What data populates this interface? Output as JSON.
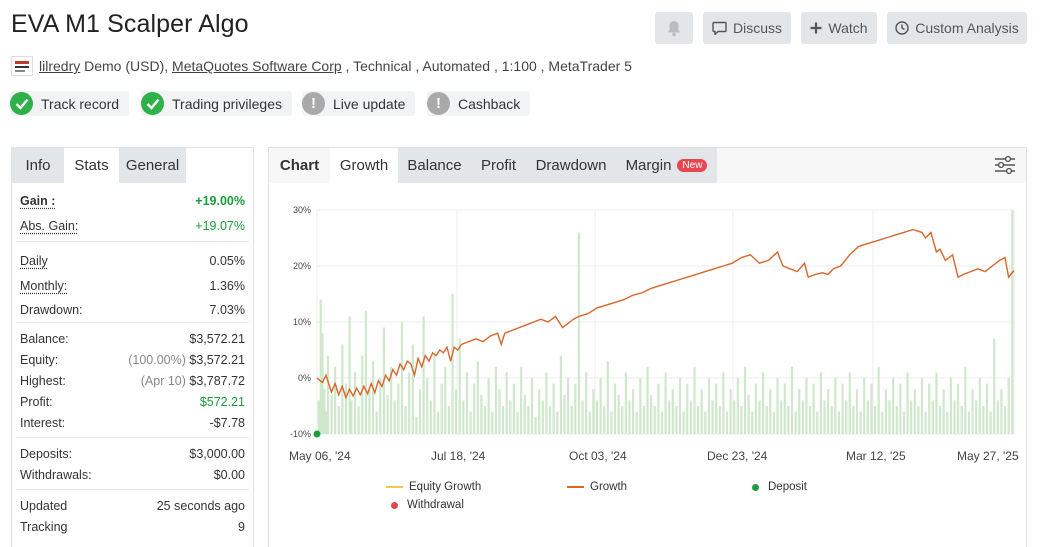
{
  "header": {
    "title": "EVA M1 Scalper Algo",
    "buttons": {
      "discuss": "Discuss",
      "watch": "Watch",
      "custom_analysis": "Custom Analysis"
    }
  },
  "meta": {
    "username": "lilredry",
    "account": " Demo (USD), ",
    "broker": "MetaQuotes Software Corp",
    "details": " , Technical , Automated , 1:100 , MetaTrader 5"
  },
  "badges": [
    {
      "label": "Track record",
      "status": "ok"
    },
    {
      "label": "Trading privileges",
      "status": "ok"
    },
    {
      "label": "Live update",
      "status": "warning"
    },
    {
      "label": "Cashback",
      "status": "warning"
    }
  ],
  "left_tabs": [
    "Info",
    "Stats",
    "General"
  ],
  "stats": {
    "gain": {
      "label": "Gain :",
      "value": "+19.00%"
    },
    "abs_gain": {
      "label": "Abs. Gain:",
      "value": "+19.07%"
    },
    "daily": {
      "label": "Daily",
      "value": "0.05%"
    },
    "monthly": {
      "label": "Monthly:",
      "value": "1.36%"
    },
    "drawdown": {
      "label": "Drawdown:",
      "value": "7.03%"
    },
    "balance": {
      "label": "Balance:",
      "value": "$3,572.21"
    },
    "equity": {
      "label": "Equity:",
      "prefix": "(100.00%)",
      "value": "$3,572.21"
    },
    "highest": {
      "label": "Highest:",
      "prefix": "(Apr 10)",
      "value": "$3,787.72"
    },
    "profit": {
      "label": "Profit:",
      "value": "$572.21"
    },
    "interest": {
      "label": "Interest:",
      "value": "-$7.78"
    },
    "deposits": {
      "label": "Deposits:",
      "value": "$3,000.00"
    },
    "withdrawals": {
      "label": "Withdrawals:",
      "value": "$0.00"
    },
    "updated": {
      "label": "Updated",
      "value": "25 seconds ago"
    },
    "tracking": {
      "label": "Tracking",
      "value": "9"
    }
  },
  "right_tabs": {
    "chart": "Chart",
    "growth": "Growth",
    "balance": "Balance",
    "profit": "Profit",
    "drawdown": "Drawdown",
    "margin": "Margin",
    "new": "New"
  },
  "colors": {
    "growth_line": "#d9662b",
    "equity_line": "#f2c94c",
    "bars": "#cfe8cc",
    "deposit": "#1e9e3a",
    "withdrawal": "#e04848",
    "positive": "#1a9c3a",
    "badge_ok": "#2eb04a",
    "badge_warn": "#a9a9a9"
  },
  "chart_data": {
    "type": "line",
    "x_tick_labels": [
      "May 06, '24",
      "Jul 18, '24",
      "Oct 03, '24",
      "Dec 23, '24",
      "Mar 12, '25",
      "May 27, '25"
    ],
    "y_tick_labels": [
      "30%",
      "20%",
      "10%",
      "0%",
      "-10%"
    ],
    "ylim": [
      -10,
      30
    ],
    "x_range_days": [
      0,
      386
    ],
    "series": [
      {
        "name": "Growth",
        "type": "line",
        "x_days": [
          0,
          3,
          5,
          8,
          10,
          12,
          14,
          16,
          18,
          20,
          22,
          24,
          26,
          28,
          30,
          32,
          34,
          36,
          38,
          40,
          42,
          44,
          46,
          48,
          50,
          52,
          54,
          56,
          58,
          60,
          62,
          64,
          66,
          68,
          70,
          72,
          74,
          76,
          78,
          80,
          84,
          88,
          92,
          96,
          100,
          102,
          104,
          108,
          112,
          116,
          120,
          124,
          128,
          132,
          136,
          140,
          142,
          145,
          150,
          155,
          160,
          165,
          170,
          175,
          180,
          185,
          190,
          195,
          200,
          205,
          210,
          215,
          220,
          225,
          230,
          235,
          240,
          245,
          250,
          255,
          258,
          262,
          266,
          270,
          272,
          276,
          280,
          283,
          286,
          290,
          295,
          300,
          305,
          310,
          315,
          320,
          325,
          330,
          335,
          337,
          340,
          343,
          345,
          348,
          352,
          355,
          358,
          362,
          366,
          370,
          374,
          378,
          381,
          383,
          386
        ],
        "y": [
          0,
          -0.8,
          0.5,
          -2.5,
          -1.0,
          -3.0,
          -1.5,
          -3.5,
          -2.0,
          -3.2,
          -1.8,
          -3.0,
          -1.5,
          -2.8,
          -1.0,
          -2.6,
          -0.5,
          -1.5,
          0.5,
          -0.5,
          1.5,
          0.5,
          2.5,
          1.5,
          3.0,
          2.5,
          0.5,
          3.5,
          2.0,
          4.0,
          3.0,
          4.5,
          4.0,
          5.0,
          4.5,
          5.5,
          3.0,
          5.5,
          5.0,
          6.0,
          6.5,
          7.0,
          6.5,
          7.5,
          8.0,
          6.0,
          8.0,
          8.5,
          9.0,
          9.5,
          10.0,
          10.5,
          10.0,
          11.0,
          9.0,
          10.0,
          10.5,
          11.0,
          11.5,
          12.5,
          13.0,
          13.5,
          14.0,
          14.8,
          15.2,
          16.0,
          16.5,
          17.0,
          17.5,
          18.0,
          18.5,
          19.0,
          19.5,
          20.0,
          20.5,
          21.5,
          22.0,
          20.5,
          21.0,
          22.5,
          20.0,
          19.5,
          19.0,
          20.5,
          18.0,
          18.5,
          18.8,
          18.5,
          19.5,
          20.0,
          22.0,
          23.5,
          24.0,
          24.5,
          25.0,
          25.5,
          26.0,
          26.5,
          26.0,
          25.0,
          26.0,
          22.5,
          23.0,
          21.0,
          22.0,
          18.0,
          18.5,
          19.0,
          19.5,
          19.0,
          20.0,
          21.0,
          21.5,
          18.0,
          19.2
        ],
        "color": "#d9662b"
      },
      {
        "name": "Equity Growth",
        "type": "line",
        "color": "#f2c94c"
      },
      {
        "name": "Deposit",
        "type": "marker",
        "x_days": [
          0
        ],
        "y": [
          -10
        ],
        "color": "#1e9e3a"
      },
      {
        "name": "Withdrawal",
        "type": "marker",
        "x_days": [],
        "y": [],
        "color": "#e04848"
      }
    ],
    "bars_note_values": [
      [
        1,
        6
      ],
      [
        2,
        24
      ],
      [
        3,
        18
      ],
      [
        4,
        8
      ],
      [
        5,
        4
      ],
      [
        6,
        14
      ],
      [
        8,
        7
      ],
      [
        10,
        12
      ],
      [
        12,
        5
      ],
      [
        14,
        16
      ],
      [
        16,
        9
      ],
      [
        18,
        21
      ],
      [
        19,
        6
      ],
      [
        21,
        11
      ],
      [
        23,
        5
      ],
      [
        25,
        14
      ],
      [
        27,
        22
      ],
      [
        29,
        8
      ],
      [
        31,
        13
      ],
      [
        33,
        4
      ],
      [
        35,
        10
      ],
      [
        37,
        19
      ],
      [
        39,
        7
      ],
      [
        41,
        12
      ],
      [
        43,
        6
      ],
      [
        45,
        9
      ],
      [
        47,
        20
      ],
      [
        49,
        5
      ],
      [
        51,
        11
      ],
      [
        53,
        16
      ],
      [
        55,
        3
      ],
      [
        57,
        8
      ],
      [
        59,
        21
      ],
      [
        61,
        10
      ],
      [
        63,
        6
      ],
      [
        65,
        14
      ],
      [
        67,
        4
      ],
      [
        69,
        9
      ],
      [
        71,
        12
      ],
      [
        73,
        5
      ],
      [
        75,
        25
      ],
      [
        77,
        8
      ],
      [
        79,
        17
      ],
      [
        81,
        6
      ],
      [
        83,
        11
      ],
      [
        85,
        4
      ],
      [
        87,
        9
      ],
      [
        89,
        13
      ],
      [
        91,
        7
      ],
      [
        93,
        5
      ],
      [
        95,
        10
      ],
      [
        97,
        4
      ],
      [
        99,
        12
      ],
      [
        101,
        8
      ],
      [
        103,
        5
      ],
      [
        105,
        11
      ],
      [
        107,
        6
      ],
      [
        109,
        9
      ],
      [
        111,
        4
      ],
      [
        113,
        12
      ],
      [
        115,
        7
      ],
      [
        117,
        5
      ],
      [
        119,
        10
      ],
      [
        121,
        3
      ],
      [
        123,
        8
      ],
      [
        125,
        6
      ],
      [
        127,
        11
      ],
      [
        129,
        5
      ],
      [
        131,
        9
      ],
      [
        133,
        4
      ],
      [
        135,
        14
      ],
      [
        137,
        7
      ],
      [
        139,
        10
      ],
      [
        141,
        5
      ],
      [
        143,
        9
      ],
      [
        145,
        36
      ],
      [
        147,
        6
      ],
      [
        149,
        11
      ],
      [
        151,
        4
      ],
      [
        153,
        8
      ],
      [
        155,
        6
      ],
      [
        157,
        10
      ],
      [
        159,
        5
      ],
      [
        161,
        13
      ],
      [
        163,
        4
      ],
      [
        165,
        9
      ],
      [
        167,
        7
      ],
      [
        169,
        5
      ],
      [
        171,
        11
      ],
      [
        173,
        6
      ],
      [
        175,
        8
      ],
      [
        177,
        4
      ],
      [
        179,
        10
      ],
      [
        181,
        5
      ],
      [
        183,
        12
      ],
      [
        185,
        7
      ],
      [
        187,
        5
      ],
      [
        189,
        9
      ],
      [
        191,
        4
      ],
      [
        193,
        11
      ],
      [
        195,
        6
      ],
      [
        197,
        8
      ],
      [
        199,
        5
      ],
      [
        201,
        10
      ],
      [
        203,
        4
      ],
      [
        205,
        9
      ],
      [
        207,
        6
      ],
      [
        209,
        12
      ],
      [
        211,
        5
      ],
      [
        213,
        8
      ],
      [
        215,
        4
      ],
      [
        217,
        10
      ],
      [
        219,
        6
      ],
      [
        221,
        9
      ],
      [
        223,
        5
      ],
      [
        225,
        11
      ],
      [
        227,
        4
      ],
      [
        229,
        8
      ],
      [
        231,
        6
      ],
      [
        233,
        10
      ],
      [
        235,
        5
      ],
      [
        237,
        12
      ],
      [
        239,
        7
      ],
      [
        241,
        4
      ],
      [
        243,
        9
      ],
      [
        245,
        6
      ],
      [
        247,
        11
      ],
      [
        249,
        5
      ],
      [
        251,
        8
      ],
      [
        253,
        4
      ],
      [
        255,
        10
      ],
      [
        257,
        6
      ],
      [
        259,
        9
      ],
      [
        261,
        5
      ],
      [
        263,
        12
      ],
      [
        265,
        4
      ],
      [
        267,
        8
      ],
      [
        269,
        6
      ],
      [
        271,
        10
      ],
      [
        273,
        5
      ],
      [
        275,
        9
      ],
      [
        277,
        4
      ],
      [
        279,
        11
      ],
      [
        281,
        6
      ],
      [
        283,
        8
      ],
      [
        285,
        5
      ],
      [
        287,
        10
      ],
      [
        289,
        4
      ],
      [
        291,
        9
      ],
      [
        293,
        6
      ],
      [
        295,
        11
      ],
      [
        297,
        5
      ],
      [
        299,
        8
      ],
      [
        301,
        4
      ],
      [
        303,
        10
      ],
      [
        305,
        6
      ],
      [
        307,
        9
      ],
      [
        309,
        5
      ],
      [
        311,
        12
      ],
      [
        313,
        4
      ],
      [
        315,
        8
      ],
      [
        317,
        6
      ],
      [
        319,
        10
      ],
      [
        321,
        5
      ],
      [
        323,
        9
      ],
      [
        325,
        4
      ],
      [
        327,
        11
      ],
      [
        329,
        6
      ],
      [
        331,
        8
      ],
      [
        333,
        5
      ],
      [
        335,
        10
      ],
      [
        337,
        4
      ],
      [
        339,
        9
      ],
      [
        341,
        6
      ],
      [
        343,
        11
      ],
      [
        345,
        5
      ],
      [
        347,
        8
      ],
      [
        349,
        4
      ],
      [
        351,
        10
      ],
      [
        353,
        6
      ],
      [
        355,
        9
      ],
      [
        357,
        5
      ],
      [
        359,
        12
      ],
      [
        361,
        4
      ],
      [
        363,
        8
      ],
      [
        365,
        6
      ],
      [
        367,
        10
      ],
      [
        369,
        5
      ],
      [
        371,
        9
      ],
      [
        373,
        4
      ],
      [
        375,
        17
      ],
      [
        377,
        6
      ],
      [
        379,
        8
      ],
      [
        381,
        5
      ],
      [
        383,
        10
      ],
      [
        385,
        40
      ]
    ],
    "legend": [
      "Equity Growth",
      "Growth",
      "Deposit",
      "Withdrawal"
    ],
    "grid": true
  }
}
